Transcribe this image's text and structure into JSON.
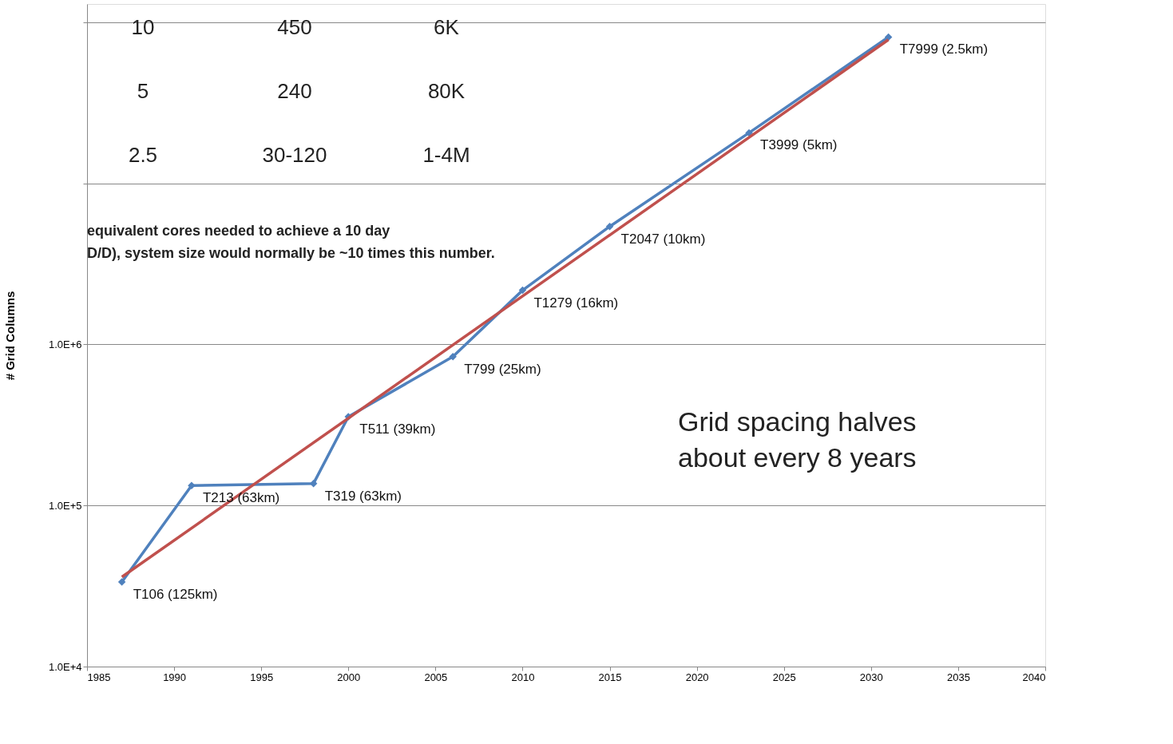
{
  "chart_data": {
    "type": "line",
    "ylabel": "# Grid Columns",
    "x": [
      1987,
      1991,
      1998,
      2000,
      2006,
      2010,
      2015,
      2023,
      2031
    ],
    "series": [
      {
        "color": "#4f81bd",
        "marker": "diamond",
        "values": [
          33500,
          133000,
          137000,
          356000,
          840000,
          2170000,
          5400000,
          20600000,
          81000000
        ]
      },
      {
        "color": "#c0504d",
        "marker": "none",
        "x": [
          1987,
          2031
        ],
        "values": [
          36000,
          78000000
        ]
      }
    ],
    "log": "y",
    "xlim": [
      1985,
      2040
    ],
    "xticks": [
      1985,
      1990,
      1995,
      2000,
      2005,
      2010,
      2015,
      2020,
      2025,
      2030,
      2035,
      2040
    ],
    "ylim": [
      10000,
      130000000
    ],
    "yticks": [
      {
        "value": 10000,
        "label": "1.0E+4"
      },
      {
        "value": 100000,
        "label": "1.0E+5"
      },
      {
        "value": 1000000,
        "label": "1.0E+6"
      },
      {
        "value": 10000000,
        "label": null
      },
      {
        "value": 100000000,
        "label": null
      }
    ],
    "grid": "y",
    "annotations": [
      {
        "text": "T106 (125km)",
        "x": 1987,
        "y": 33500
      },
      {
        "text": "T213 (63km)",
        "x": 1991,
        "y": 133000
      },
      {
        "text": "T319 (63km)",
        "x": 1998,
        "y": 137000
      },
      {
        "text": "T511 (39km)",
        "x": 2000,
        "y": 356000
      },
      {
        "text": "T799 (25km)",
        "x": 2006,
        "y": 840000
      },
      {
        "text": "T1279 (16km)",
        "x": 2010,
        "y": 2170000
      },
      {
        "text": "T2047 (10km)",
        "x": 2015,
        "y": 5400000
      },
      {
        "text": "T3999 (5km)",
        "x": 2023,
        "y": 20600000
      },
      {
        "text": "T7999 (2.5km)",
        "x": 2031,
        "y": 81000000
      },
      "10",
      "450",
      "6K",
      "5",
      "240",
      "80K",
      "2.5",
      "30-120",
      "1-4M",
      "equivalent cores needed to achieve a 10 day",
      "D/D), system size would normally be ~10 times this number.",
      "Grid spacing halves",
      "about every 8 years"
    ]
  }
}
